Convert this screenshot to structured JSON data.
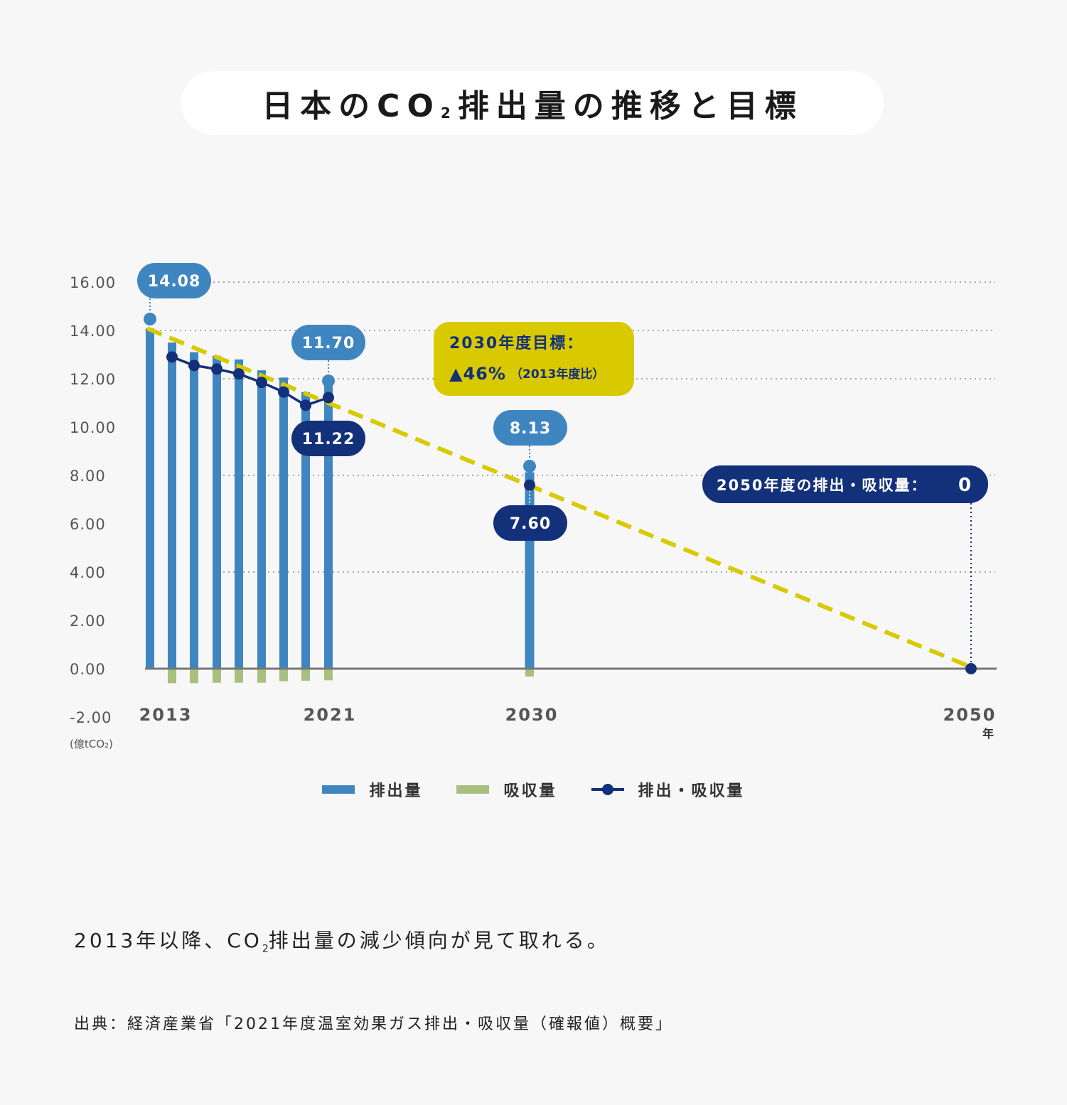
{
  "title": {
    "prefix": "日本のCO",
    "sub": "2",
    "suffix": "排出量の推移と目標"
  },
  "chart_data": {
    "type": "bar",
    "title": "日本のCO₂排出量の推移と目標",
    "unit": "(億tCO₂)",
    "year_unit": "年",
    "ylim": [
      -2,
      16
    ],
    "yticks": [
      "16.00",
      "14.00",
      "12.00",
      "10.00",
      "8.00",
      "6.00",
      "4.00",
      "2.00",
      "0.00",
      "-2.00"
    ],
    "ytick_values": [
      16,
      14,
      12,
      10,
      8,
      6,
      4,
      2,
      0,
      -2
    ],
    "x_tick_labels": [
      "2013",
      "2021",
      "2030",
      "2050"
    ],
    "grid": "dotted horizontal",
    "series": [
      {
        "name": "排出量",
        "type": "bar",
        "color": "#3f86c1",
        "x": [
          2013,
          2014,
          2015,
          2016,
          2017,
          2018,
          2019,
          2020,
          2021,
          2030
        ],
        "values": [
          14.08,
          13.5,
          13.1,
          12.95,
          12.8,
          12.35,
          12.05,
          11.45,
          11.7,
          8.13
        ]
      },
      {
        "name": "吸収量",
        "type": "bar",
        "color": "#a8c07f",
        "x": [
          2013,
          2014,
          2015,
          2016,
          2017,
          2018,
          2019,
          2020,
          2021,
          2030
        ],
        "values": [
          0,
          -0.6,
          -0.6,
          -0.58,
          -0.58,
          -0.58,
          -0.52,
          -0.5,
          -0.48,
          -0.33
        ]
      },
      {
        "name": "排出・吸収量",
        "type": "line",
        "color": "#13307a",
        "x": [
          2014,
          2015,
          2016,
          2017,
          2018,
          2019,
          2020,
          2021
        ],
        "values": [
          12.9,
          12.55,
          12.4,
          12.2,
          11.85,
          11.45,
          10.9,
          11.22
        ]
      },
      {
        "name": "排出・吸収量",
        "type": "points",
        "color": "#13307a",
        "x": [
          2030,
          2050
        ],
        "values": [
          7.6,
          0
        ]
      },
      {
        "name": "target",
        "type": "dashed-line",
        "color": "#d8c900",
        "x": [
          2013,
          2050
        ],
        "values": [
          14.08,
          0
        ]
      }
    ],
    "value_labels": [
      {
        "text": "14.08",
        "year": 2013,
        "value": 14.08,
        "style": "light"
      },
      {
        "text": "11.70",
        "year": 2021,
        "value": 11.7,
        "style": "light"
      },
      {
        "text": "11.22",
        "year": 2021,
        "value": 11.22,
        "style": "dark"
      },
      {
        "text": "8.13",
        "year": 2030,
        "value": 8.13,
        "style": "light"
      },
      {
        "text": "7.60",
        "year": 2030,
        "value": 7.6,
        "style": "dark"
      }
    ],
    "annotations": {
      "target_2030": {
        "line1": "2030年度目標：",
        "line2_main": "▲46%",
        "line2_sub": "（2013年度比）",
        "color": "#d8c900"
      },
      "target_2050": {
        "text": "2050年度の排出・吸収量：",
        "value": "0",
        "color": "#13307a"
      }
    }
  },
  "legend": [
    {
      "label": "排出量",
      "color": "#3f86c1",
      "kind": "bar"
    },
    {
      "label": "吸収量",
      "color": "#a8c07f",
      "kind": "bar"
    },
    {
      "label": "排出・吸収量",
      "color": "#13307a",
      "kind": "line"
    }
  ],
  "caption": {
    "prefix": "2013年以降、CO",
    "sub": "2",
    "suffix": "排出量の減少傾向が見て取れる。"
  },
  "source": "出典：経済産業省「2021年度温室効果ガス排出・吸収量（確報値）概要」"
}
